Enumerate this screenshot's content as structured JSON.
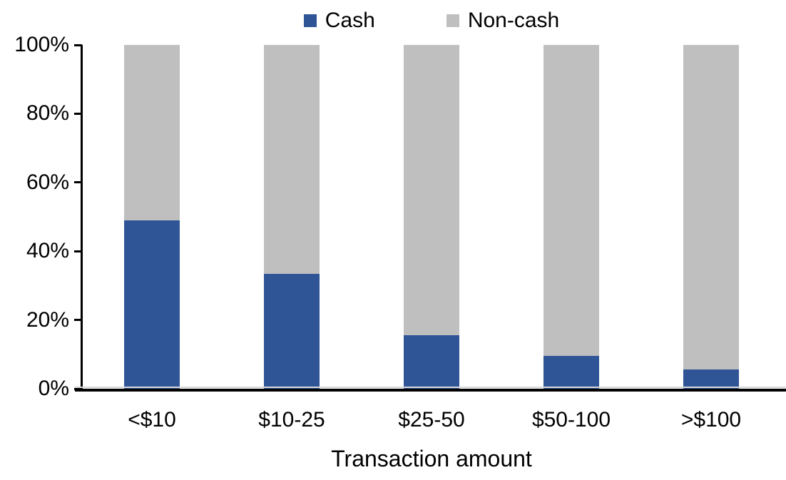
{
  "chart_data": {
    "type": "bar",
    "stacked": true,
    "title": "",
    "xlabel": "Transaction amount",
    "ylabel": "",
    "categories": [
      "<$10",
      "$10-25",
      "$25-50",
      "$50-100",
      ">$100"
    ],
    "series": [
      {
        "name": "Cash",
        "color": "#2F5597",
        "values": [
          49,
          33.5,
          15.5,
          9.5,
          5.5
        ]
      },
      {
        "name": "Non-cash",
        "color": "#BFBFBF",
        "values": [
          51,
          66.5,
          84.5,
          90.5,
          94.5
        ]
      }
    ],
    "ylim": [
      0,
      100
    ],
    "y_ticks": [
      0,
      20,
      40,
      60,
      80,
      100
    ],
    "y_tick_labels": [
      "0%",
      "20%",
      "40%",
      "60%",
      "80%",
      "100%"
    ],
    "grid": false,
    "legend_position": "top",
    "axis_color": "#000000",
    "text_color": "#000000"
  }
}
